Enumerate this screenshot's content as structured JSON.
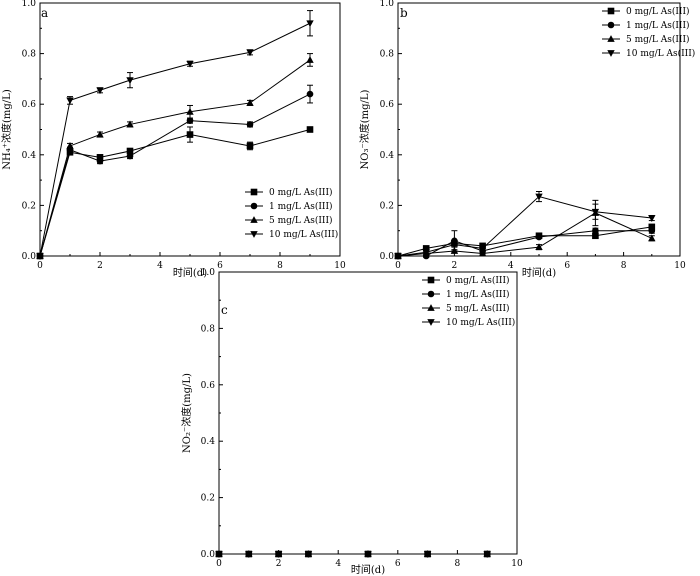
{
  "chart_data": [
    {
      "panel_label": "a",
      "type": "line",
      "xlabel": "时间(d)",
      "ylabel": "NH₄⁺浓度(mg/L)",
      "xlim": [
        0,
        10
      ],
      "ylim": [
        0,
        1.0
      ],
      "xticks": [
        "0",
        "2",
        "4",
        "6",
        "8",
        "10"
      ],
      "yticks": [
        "0.0",
        "0.2",
        "0.4",
        "0.6",
        "0.8",
        "1.0"
      ],
      "legend_position": "bottom-right",
      "x": [
        0,
        1,
        2,
        3,
        5,
        7,
        9
      ],
      "series": [
        {
          "name": "0 mg/L As(III)",
          "marker": "square",
          "values": [
            0,
            0.41,
            0.39,
            0.415,
            0.48,
            0.435,
            0.5
          ],
          "errors": [
            0,
            0.01,
            0.01,
            0.01,
            0.03,
            0.015,
            0.01
          ]
        },
        {
          "name": "1 mg/L As(III)",
          "marker": "circle",
          "values": [
            0,
            0.42,
            0.375,
            0.395,
            0.535,
            0.52,
            0.64
          ],
          "errors": [
            0,
            0.01,
            0.01,
            0.01,
            0.01,
            0.01,
            0.035
          ]
        },
        {
          "name": "5 mg/L As(III)",
          "marker": "triangle-up",
          "values": [
            0,
            0.435,
            0.48,
            0.52,
            0.57,
            0.605,
            0.775
          ],
          "errors": [
            0,
            0.01,
            0.01,
            0.01,
            0.025,
            0.01,
            0.025
          ]
        },
        {
          "name": "10 mg/L As(III)",
          "marker": "triangle-down",
          "values": [
            0,
            0.615,
            0.655,
            0.695,
            0.76,
            0.805,
            0.92
          ],
          "errors": [
            0,
            0.015,
            0.01,
            0.03,
            0.01,
            0.01,
            0.05
          ]
        }
      ]
    },
    {
      "panel_label": "b",
      "type": "line",
      "xlabel": "时间(d)",
      "ylabel": "NO₃⁻浓度(mg/L)",
      "xlim": [
        0,
        10
      ],
      "ylim": [
        0,
        1.0
      ],
      "xticks": [
        "0",
        "2",
        "4",
        "6",
        "8",
        "10"
      ],
      "yticks": [
        "0.0",
        "0.2",
        "0.4",
        "0.6",
        "0.8",
        "1.0"
      ],
      "legend_position": "top-right",
      "x": [
        0,
        1,
        2,
        3,
        5,
        7,
        9
      ],
      "series": [
        {
          "name": "0 mg/L As(III)",
          "marker": "square",
          "values": [
            0,
            0.03,
            0.05,
            0.04,
            0.08,
            0.08,
            0.115
          ],
          "errors": [
            0,
            0.005,
            0.01,
            0.005,
            0.01,
            0.01,
            0.01
          ]
        },
        {
          "name": "1 mg/L As(III)",
          "marker": "circle",
          "values": [
            0,
            0.0,
            0.06,
            0.02,
            0.075,
            0.1,
            0.1
          ],
          "errors": [
            0,
            0.005,
            0.04,
            0.01,
            0.005,
            0.01,
            0.01
          ]
        },
        {
          "name": "5 mg/L As(III)",
          "marker": "triangle-up",
          "values": [
            0,
            0.01,
            0.02,
            0.01,
            0.035,
            0.17,
            0.07
          ],
          "errors": [
            0,
            0.005,
            0.005,
            0.005,
            0.01,
            0.05,
            0.01
          ]
        },
        {
          "name": "10 mg/L As(III)",
          "marker": "triangle-down",
          "values": [
            0,
            0.015,
            0.045,
            0.03,
            0.235,
            0.175,
            0.15
          ],
          "errors": [
            0,
            0.005,
            0.01,
            0.01,
            0.02,
            0.03,
            0.01
          ]
        }
      ]
    },
    {
      "panel_label": "c",
      "type": "line",
      "xlabel": "时间(d)",
      "ylabel": "NO₂⁻浓度(mg/L)",
      "xlim": [
        0,
        10
      ],
      "ylim": [
        0,
        1.0
      ],
      "xticks": [
        "0",
        "2",
        "4",
        "6",
        "8",
        "10"
      ],
      "yticks": [
        "0.0",
        "0.2",
        "0.4",
        "0.6",
        "0.8",
        "1.0"
      ],
      "legend_position": "top-right",
      "x": [
        0,
        1,
        2,
        3,
        5,
        7,
        9
      ],
      "series": [
        {
          "name": "0 mg/L As(III)",
          "marker": "square",
          "values": [
            0,
            0,
            0,
            0,
            0,
            0,
            0
          ],
          "errors": [
            0,
            0,
            0,
            0,
            0,
            0,
            0
          ]
        },
        {
          "name": "1 mg/L As(III)",
          "marker": "circle",
          "values": [
            0,
            0,
            0,
            0,
            0,
            0,
            0
          ],
          "errors": [
            0,
            0,
            0,
            0,
            0,
            0,
            0
          ]
        },
        {
          "name": "5 mg/L As(III)",
          "marker": "triangle-up",
          "values": [
            0,
            0,
            0,
            0,
            0,
            0,
            0
          ],
          "errors": [
            0,
            0,
            0,
            0,
            0,
            0,
            0
          ]
        },
        {
          "name": "10 mg/L As(III)",
          "marker": "triangle-down",
          "values": [
            0,
            0,
            0,
            0,
            0,
            0,
            0
          ],
          "errors": [
            0,
            0,
            0,
            0,
            0,
            0,
            0
          ]
        }
      ]
    }
  ]
}
